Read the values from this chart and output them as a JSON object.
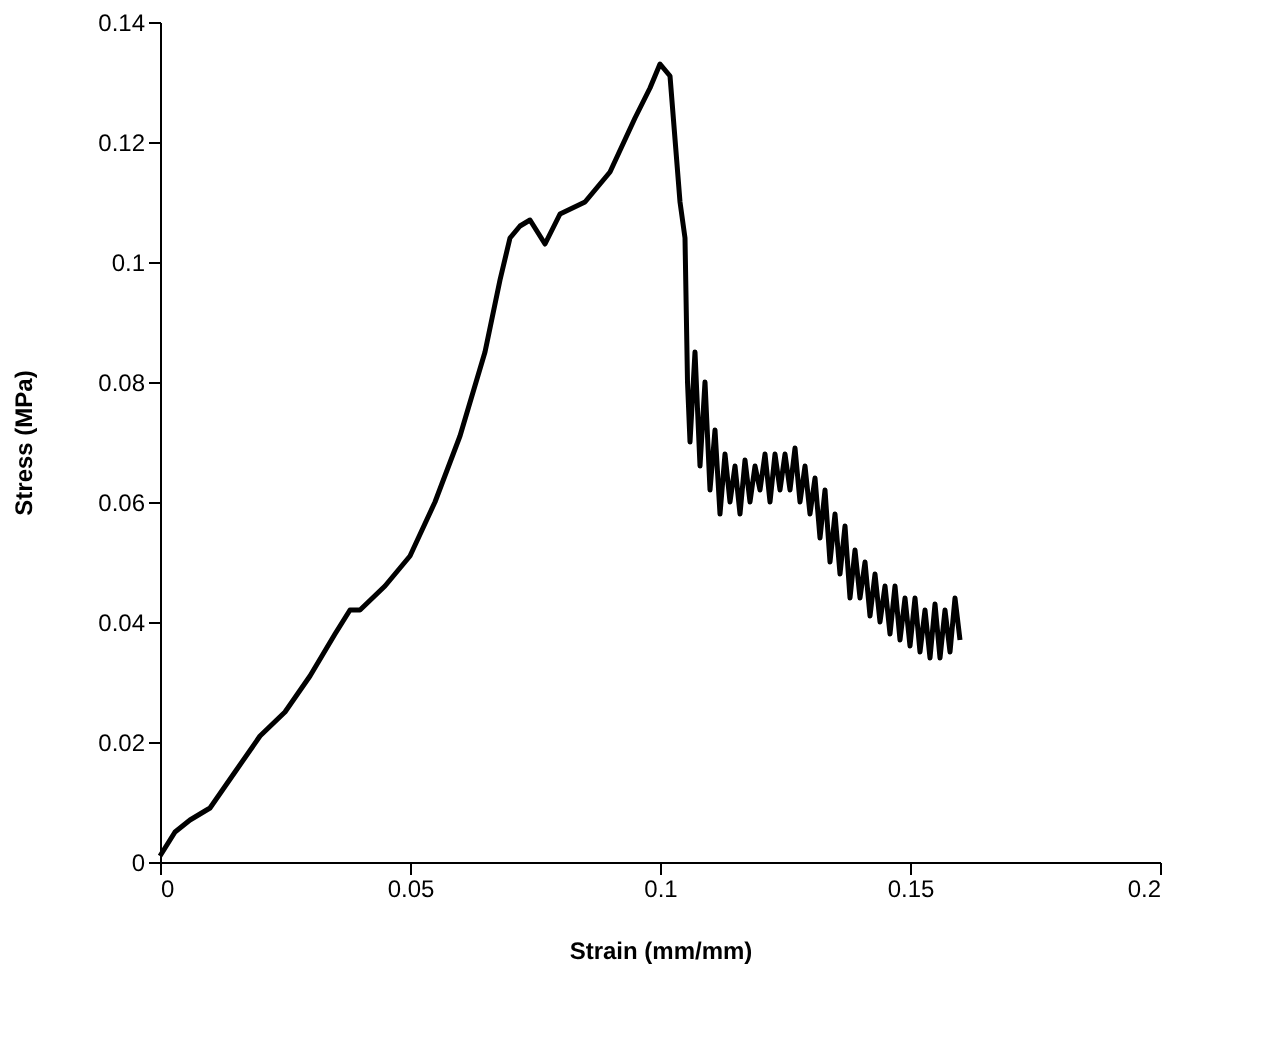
{
  "chart_data": {
    "type": "line",
    "xlabel": "Strain (mm/mm)",
    "ylabel": "Stress (MPa)",
    "xlim": [
      0,
      0.2
    ],
    "xticks": [
      0,
      0.05,
      0.1,
      0.15,
      0.2
    ],
    "ylim": [
      0,
      0.14
    ],
    "yticks": [
      0,
      0.02,
      0.04,
      0.06,
      0.08,
      0.1,
      0.12,
      0.14
    ],
    "grid": false,
    "marker": "none",
    "line_style": "solid",
    "series": [
      {
        "color": "#000000",
        "x": [
          0,
          0.003,
          0.006,
          0.01,
          0.015,
          0.02,
          0.025,
          0.03,
          0.035,
          0.038,
          0.04,
          0.045,
          0.05,
          0.055,
          0.06,
          0.065,
          0.068,
          0.07,
          0.072,
          0.074,
          0.077,
          0.08,
          0.085,
          0.09,
          0.095,
          0.098,
          0.1,
          0.102,
          0.104,
          0.105,
          0.1055,
          0.106,
          0.107,
          0.108,
          0.109,
          0.11,
          0.111,
          0.112,
          0.113,
          0.114,
          0.115,
          0.116,
          0.117,
          0.118,
          0.119,
          0.12,
          0.121,
          0.122,
          0.123,
          0.124,
          0.125,
          0.126,
          0.127,
          0.128,
          0.129,
          0.13,
          0.131,
          0.132,
          0.133,
          0.134,
          0.135,
          0.136,
          0.137,
          0.138,
          0.139,
          0.14,
          0.141,
          0.142,
          0.143,
          0.144,
          0.145,
          0.146,
          0.147,
          0.148,
          0.149,
          0.15,
          0.151,
          0.152,
          0.153,
          0.154,
          0.155,
          0.156,
          0.157,
          0.158,
          0.159,
          0.16
        ],
        "values": [
          0.001,
          0.005,
          0.007,
          0.009,
          0.015,
          0.021,
          0.025,
          0.031,
          0.038,
          0.042,
          0.042,
          0.046,
          0.051,
          0.06,
          0.071,
          0.085,
          0.097,
          0.104,
          0.106,
          0.107,
          0.103,
          0.108,
          0.11,
          0.115,
          0.124,
          0.129,
          0.133,
          0.131,
          0.11,
          0.104,
          0.08,
          0.07,
          0.085,
          0.066,
          0.08,
          0.062,
          0.072,
          0.058,
          0.068,
          0.06,
          0.066,
          0.058,
          0.067,
          0.06,
          0.066,
          0.062,
          0.068,
          0.06,
          0.068,
          0.062,
          0.068,
          0.062,
          0.069,
          0.06,
          0.066,
          0.058,
          0.064,
          0.054,
          0.062,
          0.05,
          0.058,
          0.048,
          0.056,
          0.044,
          0.052,
          0.044,
          0.05,
          0.041,
          0.048,
          0.04,
          0.046,
          0.038,
          0.046,
          0.037,
          0.044,
          0.036,
          0.044,
          0.035,
          0.042,
          0.034,
          0.043,
          0.034,
          0.042,
          0.035,
          0.044,
          0.037
        ]
      }
    ]
  }
}
